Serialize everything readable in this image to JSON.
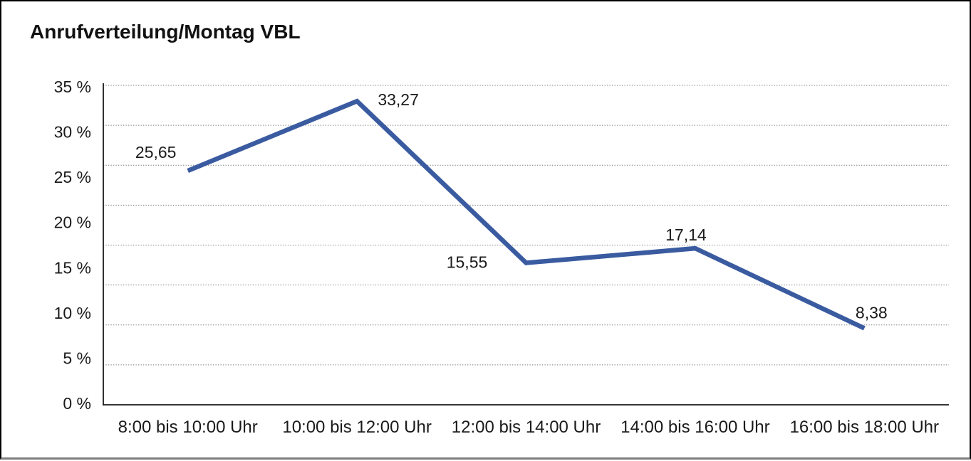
{
  "window": {
    "title": "Anrufverteilung/Montag VBL"
  },
  "chart_data": {
    "type": "line",
    "title": "Anrufverteilung/Montag VBL",
    "categories": [
      "8:00 bis 10:00 Uhr",
      "10:00 bis 12:00 Uhr",
      "12:00 bis 14:00 Uhr",
      "14:00 bis 16:00 Uhr",
      "16:00 bis 18:00 Uhr"
    ],
    "values": [
      25.65,
      33.27,
      15.55,
      17.14,
      8.38
    ],
    "point_labels": [
      "25,65",
      "33,27",
      "15,55",
      "17,14",
      "8,38"
    ],
    "xlabel": "",
    "ylabel": "",
    "ylim": [
      0,
      35
    ],
    "ytick_labels": [
      "35 %",
      "30 %",
      "25 %",
      "20 %",
      "15 %",
      "10 %",
      "5 %",
      "0 %"
    ],
    "grid": "horizontal-dotted",
    "legend": "none"
  },
  "colors": {
    "series_line": "#3a5ba0",
    "grid_line": "#767676",
    "axis_line": "#1a1a1a",
    "text": "#1a1a1a",
    "background": "#ffffff",
    "frame_border": "#000000",
    "frame_border_bottom": "#7d7d7d"
  }
}
